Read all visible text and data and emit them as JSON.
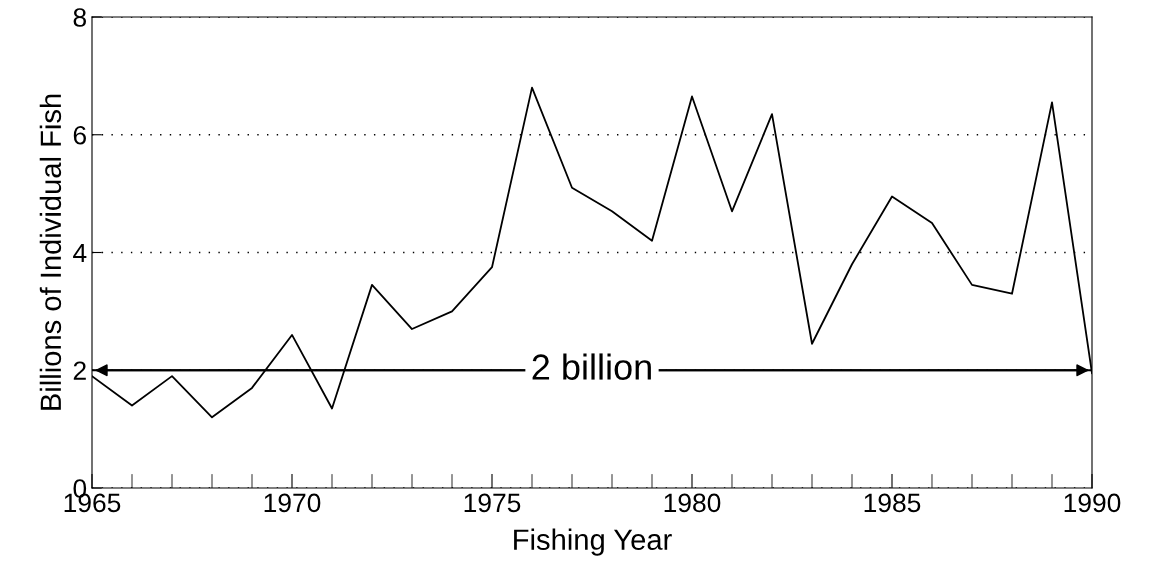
{
  "chart_data": {
    "type": "line",
    "xlabel": "Fishing Year",
    "ylabel": "Billions of Individual Fish",
    "x": [
      1965,
      1966,
      1967,
      1968,
      1969,
      1970,
      1971,
      1972,
      1973,
      1974,
      1975,
      1976,
      1977,
      1978,
      1979,
      1980,
      1981,
      1982,
      1983,
      1984,
      1985,
      1986,
      1987,
      1988,
      1989,
      1990
    ],
    "series": [
      {
        "color": "#000000",
        "values": [
          1.9,
          1.4,
          1.9,
          1.2,
          1.7,
          2.6,
          1.35,
          3.45,
          2.7,
          3.0,
          3.75,
          6.8,
          5.1,
          4.7,
          4.2,
          6.65,
          4.7,
          6.35,
          2.45,
          3.8,
          4.95,
          4.5,
          3.45,
          3.3,
          6.55,
          1.95
        ]
      }
    ],
    "xlim": [
      1965,
      1990
    ],
    "ylim": [
      0,
      8
    ],
    "xticks": [
      1965,
      {
        "value": 1966,
        "label": null
      },
      {
        "value": 1967,
        "label": null
      },
      {
        "value": 1968,
        "label": null
      },
      {
        "value": 1969,
        "label": null
      },
      1970,
      {
        "value": 1971,
        "label": null
      },
      {
        "value": 1972,
        "label": null
      },
      {
        "value": 1973,
        "label": null
      },
      {
        "value": 1974,
        "label": null
      },
      1975,
      {
        "value": 1976,
        "label": null
      },
      {
        "value": 1977,
        "label": null
      },
      {
        "value": 1978,
        "label": null
      },
      {
        "value": 1979,
        "label": null
      },
      1980,
      {
        "value": 1981,
        "label": null
      },
      {
        "value": 1982,
        "label": null
      },
      {
        "value": 1983,
        "label": null
      },
      {
        "value": 1984,
        "label": null
      },
      1985,
      {
        "value": 1986,
        "label": null
      },
      {
        "value": 1987,
        "label": null
      },
      {
        "value": 1988,
        "label": null
      },
      {
        "value": 1989,
        "label": null
      },
      1990
    ],
    "yticks": [
      0,
      2,
      4,
      6,
      8
    ],
    "grid": "y",
    "marker": "none",
    "line_style": "solid",
    "ref_lines": [
      {
        "axis": "y",
        "value": 2,
        "label": "2 billion",
        "color": "#000000"
      }
    ]
  }
}
